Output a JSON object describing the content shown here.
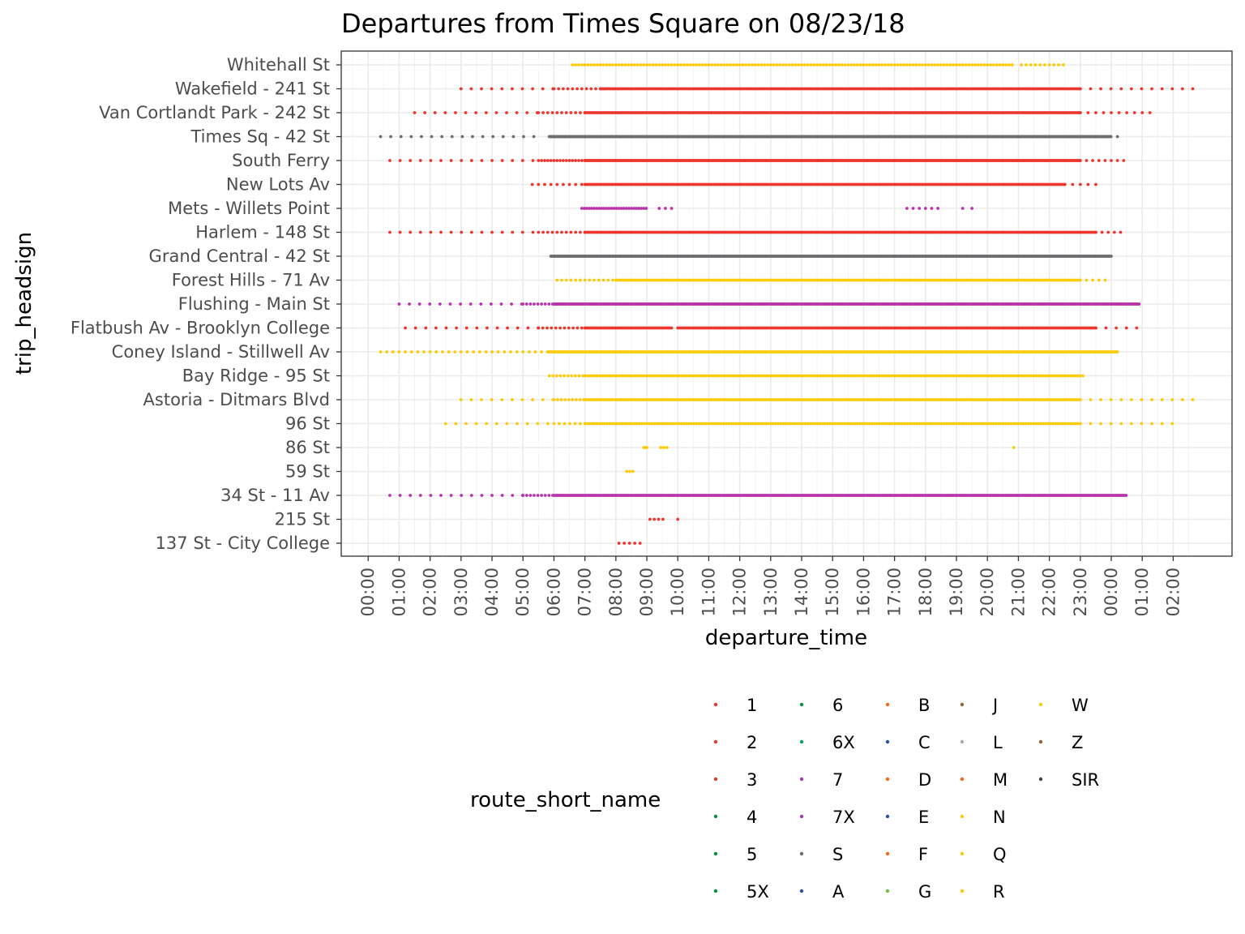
{
  "chart_data": {
    "type": "scatter",
    "title": "Departures from Times Square on 08/23/18",
    "xlabel": "departure_time",
    "ylabel": "trip_headsign",
    "x_ticks": [
      "00:00",
      "01:00",
      "02:00",
      "03:00",
      "04:00",
      "05:00",
      "06:00",
      "07:00",
      "08:00",
      "09:00",
      "10:00",
      "11:00",
      "12:00",
      "13:00",
      "14:00",
      "15:00",
      "16:00",
      "17:00",
      "18:00",
      "19:00",
      "20:00",
      "21:00",
      "22:00",
      "23:00",
      "00:00",
      "01:00",
      "02:00"
    ],
    "x_tick_hours": [
      0,
      1,
      2,
      3,
      4,
      5,
      6,
      7,
      8,
      9,
      10,
      11,
      12,
      13,
      14,
      15,
      16,
      17,
      18,
      19,
      20,
      21,
      22,
      23,
      24,
      25,
      26
    ],
    "xlim_hours": [
      -0.87,
      27.9
    ],
    "grid": true,
    "categories": [
      "137 St - City College",
      "215 St",
      "34 St - 11 Av",
      "59 St",
      "86 St",
      "96 St",
      "Astoria - Ditmars Blvd",
      "Bay Ridge - 95 St",
      "Coney Island - Stillwell Av",
      "Flatbush Av - Brooklyn College",
      "Flushing - Main St",
      "Forest Hills - 71 Av",
      "Grand Central - 42 St",
      "Harlem - 148 St",
      "Mets - Willets Point",
      "New Lots Av",
      "South Ferry",
      "Times Sq - 42 St",
      "Van Cortlandt Park - 242 St",
      "Wakefield - 241 St",
      "Whitehall St"
    ],
    "series": [
      {
        "name": "1",
        "headsign": "137 St - City College",
        "color": "#ee352e",
        "segments": [
          [
            8.1,
            8.9,
            0.17
          ]
        ]
      },
      {
        "name": "1",
        "headsign": "215 St",
        "color": "#ee352e",
        "segments": [
          [
            9.1,
            9.6,
            0.14
          ],
          [
            10.0,
            10.0,
            1
          ]
        ]
      },
      {
        "name": "7",
        "headsign": "34 St - 11 Av",
        "color": "#b933ad",
        "segments": [
          [
            0.7,
            5.0,
            0.33
          ],
          [
            5.0,
            6.0,
            0.12
          ],
          [
            6.0,
            24.5,
            0.04
          ]
        ]
      },
      {
        "name": "Q",
        "headsign": "59 St",
        "color": "#fccc0a",
        "segments": [
          [
            8.35,
            8.55,
            0.1
          ]
        ]
      },
      {
        "name": "Q",
        "headsign": "86 St",
        "color": "#fccc0a",
        "segments": [
          [
            8.9,
            9.0,
            0.05
          ],
          [
            9.45,
            9.65,
            0.1
          ],
          [
            20.85,
            20.85,
            1
          ]
        ]
      },
      {
        "name": "Q",
        "headsign": "96 St",
        "color": "#fccc0a",
        "segments": [
          [
            2.5,
            6.0,
            0.33
          ],
          [
            6.0,
            7.0,
            0.17
          ],
          [
            7.0,
            23.0,
            0.08
          ],
          [
            23.0,
            26.2,
            0.33
          ]
        ]
      },
      {
        "name": "N",
        "headsign": "Astoria - Ditmars Blvd",
        "color": "#fccc0a",
        "segments": [
          [
            3.0,
            6.0,
            0.33
          ],
          [
            6.0,
            7.0,
            0.12
          ],
          [
            7.0,
            23.0,
            0.05
          ],
          [
            23.0,
            26.7,
            0.33
          ]
        ]
      },
      {
        "name": "R",
        "headsign": "Bay Ridge - 95 St",
        "color": "#fccc0a",
        "segments": [
          [
            5.85,
            7.0,
            0.12
          ],
          [
            7.0,
            23.1,
            0.08
          ]
        ]
      },
      {
        "name": "N",
        "headsign": "Coney Island - Stillwell Av",
        "color": "#fccc0a",
        "segments": [
          [
            0.4,
            5.8,
            0.2
          ],
          [
            5.8,
            24.2,
            0.04
          ]
        ]
      },
      {
        "name": "2",
        "headsign": "Flatbush Av - Brooklyn College",
        "color": "#ee352e",
        "segments": [
          [
            1.2,
            5.5,
            0.33
          ],
          [
            5.5,
            7.0,
            0.14
          ],
          [
            7.0,
            9.8,
            0.05
          ],
          [
            10.0,
            23.5,
            0.05
          ],
          [
            23.5,
            24.9,
            0.33
          ]
        ]
      },
      {
        "name": "7",
        "headsign": "Flushing - Main St",
        "color": "#b933ad",
        "segments": [
          [
            1.0,
            5.0,
            0.33
          ],
          [
            5.0,
            6.0,
            0.12
          ],
          [
            6.0,
            24.9,
            0.03
          ]
        ]
      },
      {
        "name": "R",
        "headsign": "Forest Hills - 71 Av",
        "color": "#fccc0a",
        "segments": [
          [
            6.1,
            8.0,
            0.15
          ],
          [
            8.0,
            23.0,
            0.07
          ],
          [
            23.0,
            23.8,
            0.2
          ]
        ]
      },
      {
        "name": "S",
        "headsign": "Grand Central - 42 St",
        "color": "#6d6e71",
        "segments": [
          [
            5.9,
            24.0,
            0.02
          ]
        ]
      },
      {
        "name": "3",
        "headsign": "Harlem - 148 St",
        "color": "#ee352e",
        "segments": [
          [
            0.7,
            5.5,
            0.33
          ],
          [
            5.5,
            7.0,
            0.15
          ],
          [
            7.0,
            23.5,
            0.05
          ],
          [
            23.5,
            24.4,
            0.2
          ]
        ]
      },
      {
        "name": "7X",
        "headsign": "Mets - Willets Point",
        "color": "#b933ad",
        "segments": [
          [
            6.9,
            9.0,
            0.08
          ],
          [
            9.4,
            9.8,
            0.2
          ],
          [
            17.4,
            18.5,
            0.2
          ],
          [
            19.2,
            19.5,
            0.3
          ]
        ]
      },
      {
        "name": "3",
        "headsign": "New Lots Av",
        "color": "#ee352e",
        "segments": [
          [
            5.3,
            7.0,
            0.2
          ],
          [
            7.0,
            22.5,
            0.05
          ],
          [
            22.5,
            23.6,
            0.25
          ]
        ]
      },
      {
        "name": "1",
        "headsign": "South Ferry",
        "color": "#ee352e",
        "segments": [
          [
            0.7,
            5.5,
            0.33
          ],
          [
            5.5,
            7.0,
            0.1
          ],
          [
            7.0,
            23.0,
            0.03
          ],
          [
            23.0,
            24.5,
            0.2
          ]
        ]
      },
      {
        "name": "S",
        "headsign": "Times Sq - 42 St",
        "color": "#6d6e71",
        "segments": [
          [
            0.4,
            5.5,
            0.33
          ],
          [
            5.85,
            24.0,
            0.02
          ],
          [
            24.2,
            24.2,
            1
          ]
        ]
      },
      {
        "name": "1",
        "headsign": "Van Cortlandt Park - 242 St",
        "color": "#ee352e",
        "segments": [
          [
            1.5,
            5.5,
            0.33
          ],
          [
            5.5,
            7.0,
            0.15
          ],
          [
            7.0,
            23.0,
            0.05
          ],
          [
            23.0,
            25.3,
            0.25
          ]
        ]
      },
      {
        "name": "2",
        "headsign": "Wakefield - 241 St",
        "color": "#ee352e",
        "segments": [
          [
            3.0,
            6.0,
            0.33
          ],
          [
            6.0,
            7.5,
            0.15
          ],
          [
            7.5,
            23.0,
            0.05
          ],
          [
            23.0,
            26.7,
            0.33
          ]
        ]
      },
      {
        "name": "W",
        "headsign": "Whitehall St",
        "color": "#fccc0a",
        "segments": [
          [
            6.6,
            20.8,
            0.1
          ],
          [
            21.1,
            22.5,
            0.15
          ]
        ]
      }
    ],
    "legend": {
      "title": "route_short_name",
      "placement": "bottom",
      "entries": [
        {
          "label": "1",
          "color": "#ee352e"
        },
        {
          "label": "2",
          "color": "#ee352e"
        },
        {
          "label": "3",
          "color": "#ee352e"
        },
        {
          "label": "4",
          "color": "#00933c"
        },
        {
          "label": "5",
          "color": "#00933c"
        },
        {
          "label": "5X",
          "color": "#00933c"
        },
        {
          "label": "6",
          "color": "#00933c"
        },
        {
          "label": "6X",
          "color": "#00a65c"
        },
        {
          "label": "7",
          "color": "#b933ad"
        },
        {
          "label": "7X",
          "color": "#b933ad"
        },
        {
          "label": "S",
          "color": "#6d6e71"
        },
        {
          "label": "A",
          "color": "#2850ad"
        },
        {
          "label": "B",
          "color": "#ff6319"
        },
        {
          "label": "C",
          "color": "#2850ad"
        },
        {
          "label": "D",
          "color": "#ff6319"
        },
        {
          "label": "E",
          "color": "#2850ad"
        },
        {
          "label": "F",
          "color": "#ff6319"
        },
        {
          "label": "G",
          "color": "#6cbe45"
        },
        {
          "label": "J",
          "color": "#996633"
        },
        {
          "label": "L",
          "color": "#a7a9ac"
        },
        {
          "label": "M",
          "color": "#ff6319"
        },
        {
          "label": "N",
          "color": "#fccc0a"
        },
        {
          "label": "Q",
          "color": "#fccc0a"
        },
        {
          "label": "R",
          "color": "#fccc0a"
        },
        {
          "label": "W",
          "color": "#fccc0a"
        },
        {
          "label": "Z",
          "color": "#996633"
        },
        {
          "label": "SIR",
          "color": "#444444"
        }
      ]
    }
  }
}
